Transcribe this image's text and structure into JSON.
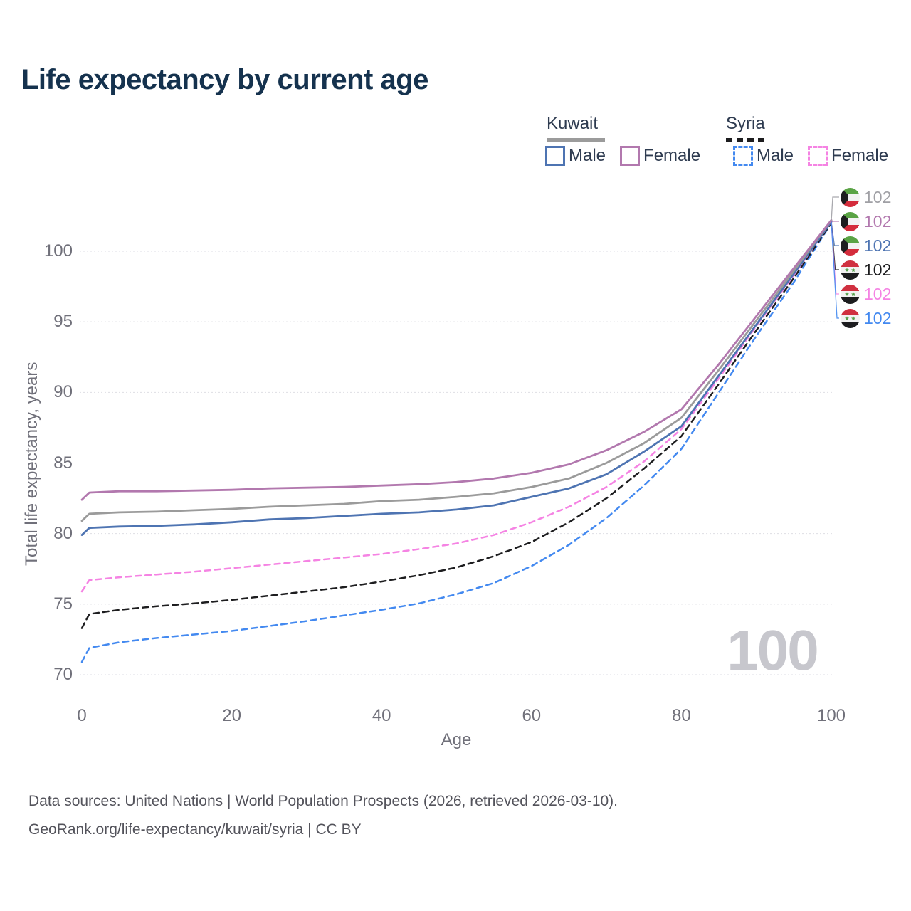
{
  "title": "Life expectancy by current age",
  "legend": {
    "groups": [
      {
        "name": "Kuwait",
        "line_style": "solid",
        "underline_color": "#9b9b9b",
        "items": [
          {
            "label": "Male",
            "color": "#4e74b2",
            "dashed": false
          },
          {
            "label": "Female",
            "color": "#b278ae",
            "dashed": false
          }
        ]
      },
      {
        "name": "Syria",
        "line_style": "dashed",
        "underline_color": "#1d1d1f",
        "items": [
          {
            "label": "Male",
            "color": "#4389f0",
            "dashed": true
          },
          {
            "label": "Female",
            "color": "#f583e3",
            "dashed": true
          }
        ]
      }
    ]
  },
  "watermark": "100",
  "end_labels": [
    {
      "country": "Kuwait",
      "flag": "kuwait",
      "value": "102",
      "color": "#a0a0a5"
    },
    {
      "country": "Kuwait",
      "flag": "kuwait",
      "value": "102",
      "color": "#b278ae"
    },
    {
      "country": "Kuwait",
      "flag": "kuwait",
      "value": "102",
      "color": "#4e74b2"
    },
    {
      "country": "Syria",
      "flag": "syria",
      "value": "102",
      "color": "#1d1d1f"
    },
    {
      "country": "Syria",
      "flag": "syria",
      "value": "102",
      "color": "#f583e3"
    },
    {
      "country": "Syria",
      "flag": "syria",
      "value": "102",
      "color": "#4389f0"
    }
  ],
  "footer": {
    "line1": "Data sources: United Nations | World Population Prospects (2026, retrieved 2026-03-10).",
    "line2": "GeoRank.org/life-expectancy/kuwait/syria | CC BY"
  },
  "chart_data": {
    "type": "line",
    "title": "Life expectancy by current age",
    "xlabel": "Age",
    "ylabel": "Total life expectancy, years",
    "xlim": [
      0,
      100
    ],
    "ylim": [
      70,
      103
    ],
    "x_ticks": [
      0,
      20,
      40,
      60,
      80,
      100
    ],
    "y_ticks": [
      70,
      75,
      80,
      85,
      90,
      95,
      100
    ],
    "grid": "horizontal-only",
    "x": [
      0,
      1,
      5,
      10,
      15,
      20,
      25,
      30,
      35,
      40,
      45,
      50,
      55,
      60,
      65,
      70,
      75,
      80,
      85,
      90,
      95,
      100
    ],
    "series": [
      {
        "name": "Kuwait Female",
        "country": "Kuwait",
        "sex": "Female",
        "color": "#b278ae",
        "dashed": false,
        "values": [
          82.4,
          82.9,
          83.0,
          83.0,
          83.05,
          83.1,
          83.2,
          83.25,
          83.3,
          83.4,
          83.5,
          83.65,
          83.9,
          84.3,
          84.9,
          85.9,
          87.2,
          88.8,
          92.0,
          95.4,
          98.8,
          102.2
        ]
      },
      {
        "name": "Kuwait Both sexes",
        "country": "Kuwait",
        "sex": "Both",
        "color": "#9b9b9b",
        "dashed": false,
        "values": [
          80.9,
          81.4,
          81.5,
          81.55,
          81.65,
          81.75,
          81.9,
          82.0,
          82.1,
          82.3,
          82.4,
          82.6,
          82.85,
          83.3,
          83.9,
          85.0,
          86.4,
          88.2,
          91.6,
          95.1,
          98.6,
          102.2
        ]
      },
      {
        "name": "Kuwait Male",
        "country": "Kuwait",
        "sex": "Male",
        "color": "#4e74b2",
        "dashed": false,
        "values": [
          79.9,
          80.4,
          80.5,
          80.55,
          80.65,
          80.8,
          81.0,
          81.1,
          81.25,
          81.4,
          81.5,
          81.7,
          82.0,
          82.6,
          83.2,
          84.2,
          85.8,
          87.6,
          91.2,
          94.8,
          98.4,
          102.1
        ]
      },
      {
        "name": "Syria Female",
        "country": "Syria",
        "sex": "Female",
        "color": "#f583e3",
        "dashed": true,
        "values": [
          75.9,
          76.7,
          76.9,
          77.1,
          77.3,
          77.55,
          77.8,
          78.05,
          78.3,
          78.55,
          78.9,
          79.3,
          79.9,
          80.8,
          81.9,
          83.3,
          85.1,
          87.4,
          91.0,
          94.7,
          98.3,
          102.1
        ]
      },
      {
        "name": "Syria Both sexes",
        "country": "Syria",
        "sex": "Both",
        "color": "#1d1d1f",
        "dashed": true,
        "values": [
          73.3,
          74.3,
          74.6,
          74.85,
          75.05,
          75.3,
          75.6,
          75.9,
          76.2,
          76.6,
          77.05,
          77.6,
          78.4,
          79.4,
          80.8,
          82.5,
          84.6,
          86.9,
          90.6,
          94.4,
          98.1,
          102.0
        ]
      },
      {
        "name": "Syria Male",
        "country": "Syria",
        "sex": "Male",
        "color": "#4389f0",
        "dashed": true,
        "values": [
          70.9,
          71.9,
          72.3,
          72.6,
          72.85,
          73.1,
          73.45,
          73.8,
          74.2,
          74.6,
          75.05,
          75.7,
          76.5,
          77.7,
          79.2,
          81.1,
          83.4,
          86.0,
          90.0,
          94.0,
          97.8,
          102.0
        ]
      }
    ],
    "end_value": 102,
    "legend_position": "top-right"
  }
}
